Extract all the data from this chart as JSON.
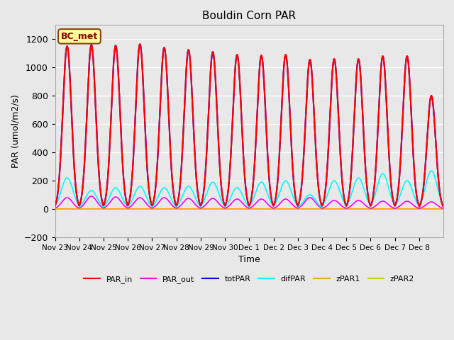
{
  "title": "Bouldin Corn PAR",
  "ylabel": "PAR (umol/m2/s)",
  "xlabel": "Time",
  "ylim": [
    -200,
    1300
  ],
  "yticks": [
    -200,
    0,
    200,
    400,
    600,
    800,
    1000,
    1200
  ],
  "background_color": "#e8e8e8",
  "annotation_text": "BC_met",
  "annotation_color": "#8B0000",
  "annotation_bg": "#ffff99",
  "annotation_border": "#8B4513",
  "series": {
    "PAR_in": {
      "color": "#ff0000",
      "lw": 1.5
    },
    "PAR_out": {
      "color": "#ff00ff",
      "lw": 1.2
    },
    "totPAR": {
      "color": "#0000ff",
      "lw": 1.5
    },
    "difPAR": {
      "color": "#00ffff",
      "lw": 1.2
    },
    "zPAR1": {
      "color": "#ffa500",
      "lw": 1.2
    },
    "zPAR2": {
      "color": "#cccc00",
      "lw": 1.2
    }
  },
  "n_days": 16,
  "peaks": [
    1150,
    1160,
    1155,
    1165,
    1140,
    1125,
    1110,
    1090,
    1085,
    1090,
    1055,
    1060,
    1060,
    1080,
    1080,
    800
  ],
  "par_out_peaks": [
    80,
    90,
    85,
    80,
    80,
    75,
    75,
    70,
    70,
    70,
    80,
    60,
    60,
    55,
    55,
    50
  ],
  "difpar_peaks": [
    220,
    130,
    150,
    160,
    150,
    160,
    190,
    150,
    190,
    200,
    100,
    200,
    220,
    250,
    200,
    270
  ],
  "x_tick_labels": [
    "Nov 23",
    "Nov 24",
    "Nov 25",
    "Nov 26",
    "Nov 27",
    "Nov 28",
    "Nov 29",
    "Nov 30",
    "Dec 1",
    "Dec 2",
    "Dec 3",
    "Dec 4",
    "Dec 5",
    "Dec 6",
    "Dec 7",
    "Dec 8"
  ]
}
